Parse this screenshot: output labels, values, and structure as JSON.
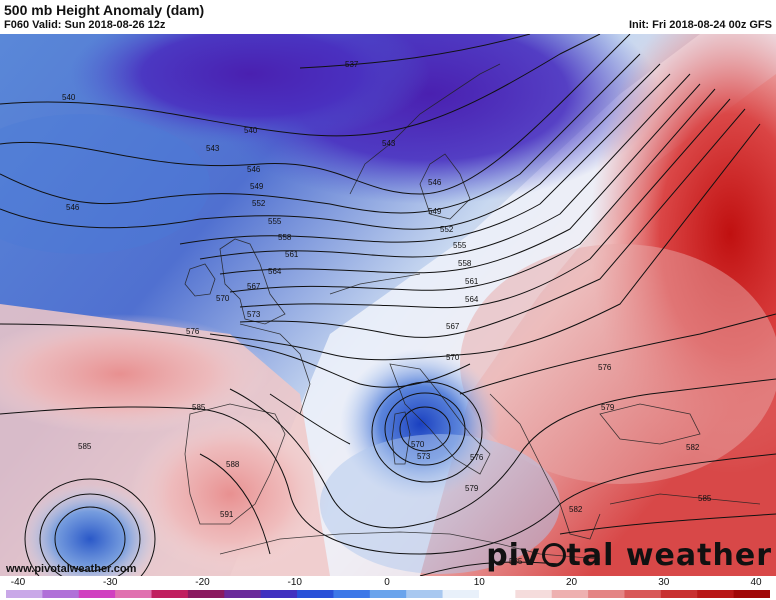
{
  "header": {
    "title": "500 mb Height Anomaly (dam)",
    "valid": "F060 Valid: Sun 2018-08-26 12z",
    "init": "Init: Fri 2018-08-24 00z GFS"
  },
  "footer": {
    "site": "www.pivotalweather.com",
    "brand_left": "piv",
    "brand_right": "tal weather"
  },
  "colorbar": {
    "ticks": [
      "-40",
      "-30",
      "-20",
      "-10",
      "0",
      "10",
      "20",
      "30",
      "40"
    ],
    "colors": [
      "#c9a8e8",
      "#b070d8",
      "#d040c0",
      "#e070b0",
      "#c02060",
      "#8a1a60",
      "#6a2a9a",
      "#4030c0",
      "#2850d8",
      "#3c78e8",
      "#6aa4ec",
      "#a8c8f0",
      "#e8f0fa",
      "#ffffff",
      "#f5dcdc",
      "#eeb0b0",
      "#e48484",
      "#d85858",
      "#c83030",
      "#b81818",
      "#a00808"
    ]
  },
  "contour_labels": [
    "537",
    "540",
    "540",
    "543",
    "543",
    "546",
    "546",
    "546",
    "549",
    "549",
    "552",
    "552",
    "555",
    "555",
    "558",
    "558",
    "561",
    "561",
    "564",
    "564",
    "567",
    "567",
    "570",
    "570",
    "570",
    "573",
    "573",
    "576",
    "576",
    "576",
    "579",
    "579",
    "582",
    "582",
    "585",
    "585",
    "585",
    "585",
    "588",
    "591"
  ]
}
